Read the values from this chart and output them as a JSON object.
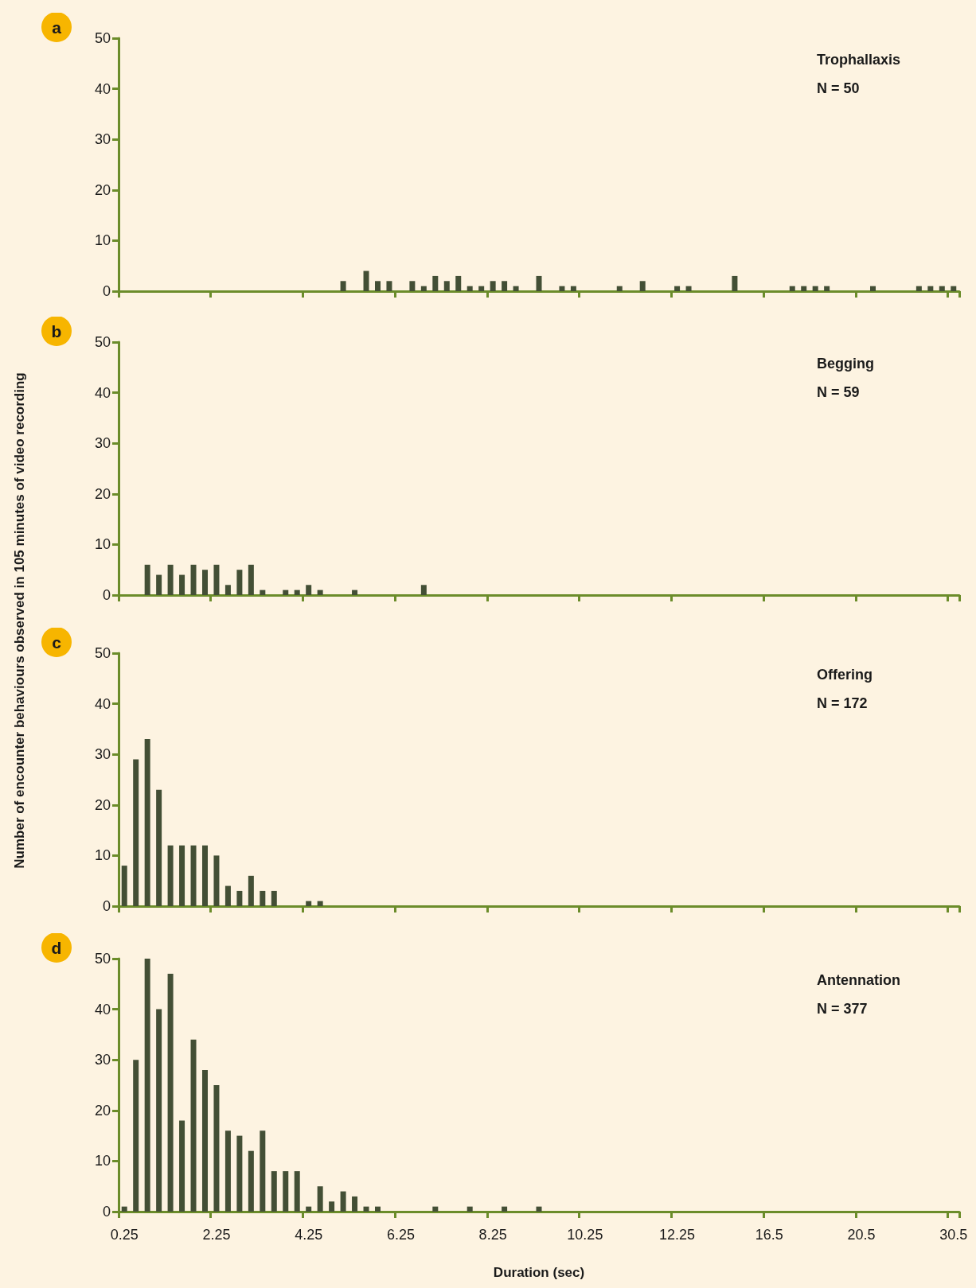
{
  "chart_data": [
    {
      "type": "bar",
      "title": "a",
      "color": "#434f35",
      "tick_labels": "y",
      "grid": false,
      "ylim": [
        0,
        50
      ],
      "yticks": [
        0,
        10,
        20,
        30,
        40,
        50
      ],
      "annotations": [
        "Trophallaxis",
        "N = 50"
      ],
      "categories": [
        "0.25",
        null,
        null,
        null,
        null,
        null,
        null,
        null,
        "2.25",
        null,
        null,
        null,
        null,
        null,
        null,
        null,
        "4.25",
        null,
        null,
        null,
        null,
        null,
        null,
        null,
        "6.25",
        null,
        null,
        null,
        null,
        null,
        null,
        null,
        "8.25",
        null,
        null,
        null,
        null,
        null,
        null,
        null,
        "10.25",
        null,
        null,
        null,
        null,
        null,
        null,
        null,
        "12.25",
        null,
        null,
        null,
        null,
        null,
        null,
        null,
        "16.5",
        null,
        null,
        null,
        null,
        null,
        null,
        null,
        "20.5",
        null,
        null,
        null,
        null,
        null,
        null,
        null,
        "30.5"
      ],
      "values": [
        0,
        0,
        0,
        0,
        0,
        0,
        0,
        0,
        0,
        0,
        0,
        0,
        0,
        0,
        0,
        0,
        0,
        0,
        0,
        2,
        0,
        4,
        2,
        2,
        0,
        2,
        1,
        3,
        2,
        3,
        1,
        1,
        2,
        2,
        1,
        0,
        3,
        0,
        1,
        1,
        0,
        0,
        0,
        1,
        0,
        2,
        0,
        0,
        1,
        1,
        0,
        0,
        0,
        3,
        0,
        0,
        0,
        0,
        1,
        1,
        1,
        1,
        0,
        0,
        0,
        1,
        0,
        0,
        0,
        1,
        1,
        1,
        1
      ]
    },
    {
      "type": "bar",
      "title": "b",
      "color": "#434f35",
      "tick_labels": "y",
      "grid": false,
      "ylim": [
        0,
        50
      ],
      "yticks": [
        0,
        10,
        20,
        30,
        40,
        50
      ],
      "annotations": [
        "Begging",
        "N = 59"
      ],
      "ylabel": "Number of encounter behaviours observed in 105 minutes of video recording",
      "categories": [
        "0.25",
        null,
        null,
        null,
        null,
        null,
        null,
        null,
        "2.25",
        null,
        null,
        null,
        null,
        null,
        null,
        null,
        "4.25",
        null,
        null,
        null,
        null,
        null,
        null,
        null,
        "6.25",
        null,
        null,
        null,
        null,
        null,
        null,
        null,
        "8.25",
        null,
        null,
        null,
        null,
        null,
        null,
        null,
        "10.25",
        null,
        null,
        null,
        null,
        null,
        null,
        null,
        "12.25",
        null,
        null,
        null,
        null,
        null,
        null,
        null,
        "16.5",
        null,
        null,
        null,
        null,
        null,
        null,
        null,
        "20.5",
        null,
        null,
        null,
        null,
        null,
        null,
        null,
        "30.5"
      ],
      "values": [
        0,
        0,
        6,
        4,
        6,
        4,
        6,
        5,
        6,
        2,
        5,
        6,
        1,
        0,
        1,
        1,
        2,
        1,
        0,
        0,
        1,
        0,
        0,
        0,
        0,
        0,
        2,
        0,
        0,
        0,
        0,
        0,
        0,
        0,
        0,
        0,
        0,
        0,
        0,
        0,
        0,
        0,
        0,
        0,
        0,
        0,
        0,
        0,
        0,
        0,
        0,
        0,
        0,
        0,
        0,
        0,
        0,
        0,
        0,
        0,
        0,
        0,
        0,
        0,
        0,
        0,
        0,
        0,
        0,
        0,
        0,
        0,
        0
      ]
    },
    {
      "type": "bar",
      "title": "c",
      "color": "#434f35",
      "tick_labels": "y",
      "grid": false,
      "ylim": [
        0,
        50
      ],
      "yticks": [
        0,
        10,
        20,
        30,
        40,
        50
      ],
      "annotations": [
        "Offering",
        "N = 172"
      ],
      "categories": [
        "0.25",
        null,
        null,
        null,
        null,
        null,
        null,
        null,
        "2.25",
        null,
        null,
        null,
        null,
        null,
        null,
        null,
        "4.25",
        null,
        null,
        null,
        null,
        null,
        null,
        null,
        "6.25",
        null,
        null,
        null,
        null,
        null,
        null,
        null,
        "8.25",
        null,
        null,
        null,
        null,
        null,
        null,
        null,
        "10.25",
        null,
        null,
        null,
        null,
        null,
        null,
        null,
        "12.25",
        null,
        null,
        null,
        null,
        null,
        null,
        null,
        "16.5",
        null,
        null,
        null,
        null,
        null,
        null,
        null,
        "20.5",
        null,
        null,
        null,
        null,
        null,
        null,
        null,
        "30.5"
      ],
      "values": [
        8,
        29,
        33,
        23,
        12,
        12,
        12,
        12,
        10,
        4,
        3,
        6,
        3,
        3,
        0,
        0,
        1,
        1,
        0,
        0,
        0,
        0,
        0,
        0,
        0,
        0,
        0,
        0,
        0,
        0,
        0,
        0,
        0,
        0,
        0,
        0,
        0,
        0,
        0,
        0,
        0,
        0,
        0,
        0,
        0,
        0,
        0,
        0,
        0,
        0,
        0,
        0,
        0,
        0,
        0,
        0,
        0,
        0,
        0,
        0,
        0,
        0,
        0,
        0,
        0,
        0,
        0,
        0,
        0,
        0,
        0,
        0,
        0
      ]
    },
    {
      "type": "bar",
      "title": "d",
      "color": "#434f35",
      "grid": false,
      "ylim": [
        0,
        50
      ],
      "yticks": [
        0,
        10,
        20,
        30,
        40,
        50
      ],
      "annotations": [
        "Antennation",
        "N = 377"
      ],
      "xlabel": "Duration (sec)",
      "categories": [
        "0.25",
        null,
        null,
        null,
        null,
        null,
        null,
        null,
        "2.25",
        null,
        null,
        null,
        null,
        null,
        null,
        null,
        "4.25",
        null,
        null,
        null,
        null,
        null,
        null,
        null,
        "6.25",
        null,
        null,
        null,
        null,
        null,
        null,
        null,
        "8.25",
        null,
        null,
        null,
        null,
        null,
        null,
        null,
        "10.25",
        null,
        null,
        null,
        null,
        null,
        null,
        null,
        "12.25",
        null,
        null,
        null,
        null,
        null,
        null,
        null,
        "16.5",
        null,
        null,
        null,
        null,
        null,
        null,
        null,
        "20.5",
        null,
        null,
        null,
        null,
        null,
        null,
        null,
        "30.5"
      ],
      "values": [
        1,
        30,
        50,
        40,
        47,
        18,
        34,
        28,
        25,
        16,
        15,
        12,
        16,
        8,
        8,
        8,
        1,
        5,
        2,
        4,
        3,
        1,
        1,
        0,
        0,
        0,
        0,
        1,
        0,
        0,
        1,
        0,
        0,
        1,
        0,
        0,
        1,
        0,
        0,
        0,
        0,
        0,
        0,
        0,
        0,
        0,
        0,
        0,
        0,
        0,
        0,
        0,
        0,
        0,
        0,
        0,
        0,
        0,
        0,
        0,
        0,
        0,
        0,
        0,
        0,
        0,
        0,
        0,
        0,
        0,
        0,
        0,
        0
      ]
    }
  ]
}
